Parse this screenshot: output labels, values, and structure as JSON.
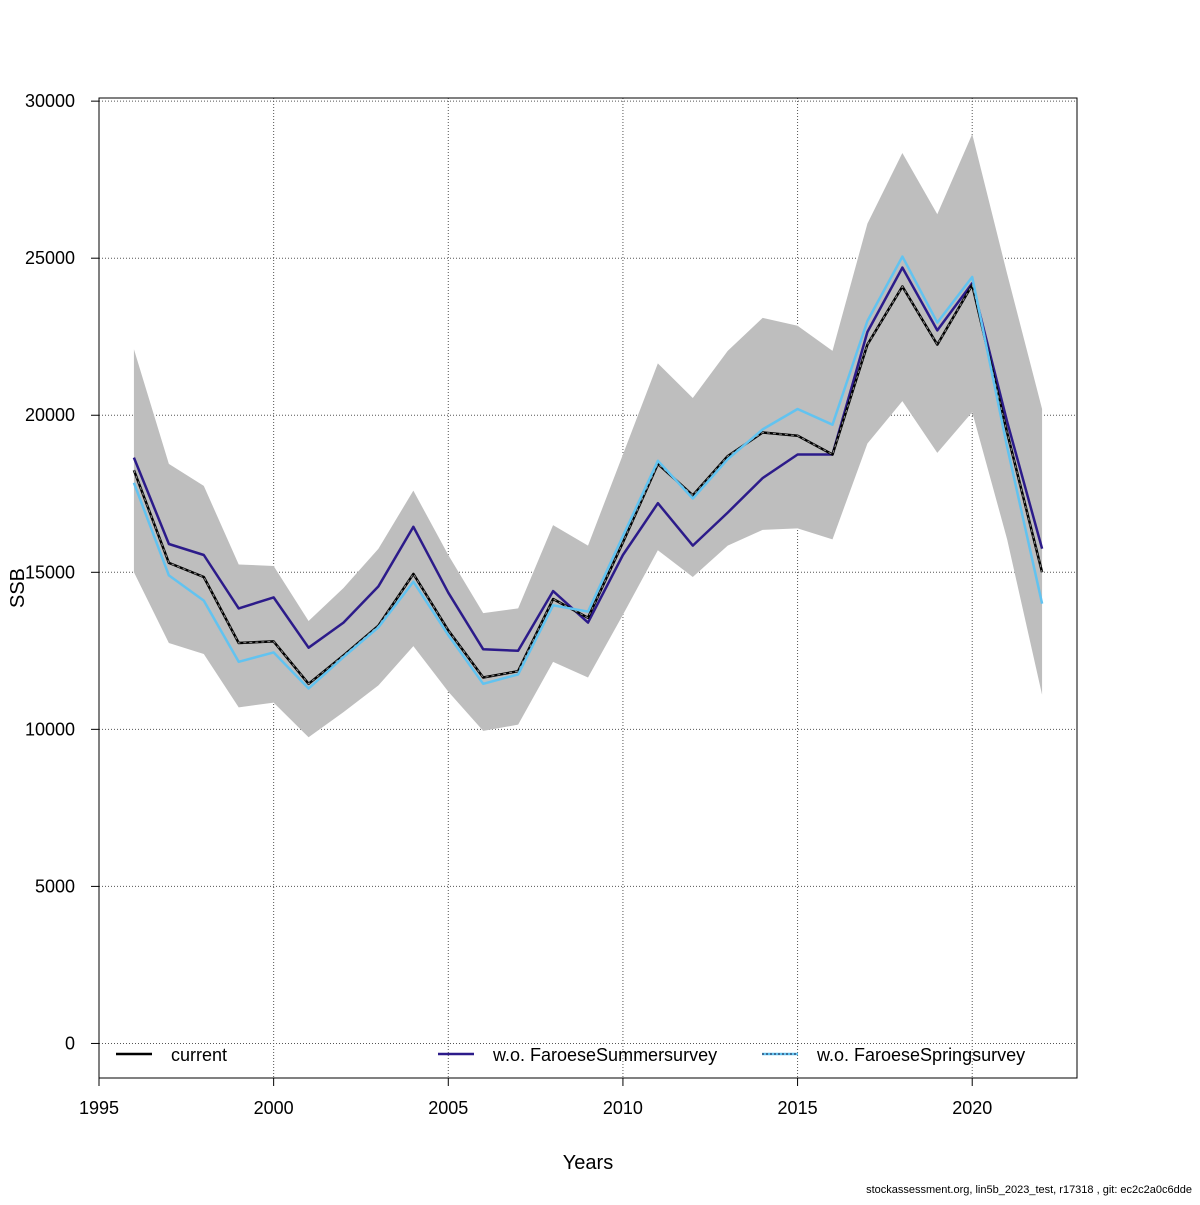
{
  "chart_data": {
    "type": "line",
    "title": "",
    "xlabel": "Years",
    "ylabel": "SSB",
    "xlim": [
      1995,
      2023
    ],
    "ylim": [
      -1100,
      30100
    ],
    "x_ticks": [
      1995,
      2000,
      2005,
      2010,
      2015,
      2020
    ],
    "y_ticks": [
      0,
      5000,
      10000,
      15000,
      20000,
      25000,
      30000
    ],
    "grid": true,
    "legend_position": "bottom",
    "x": [
      1996,
      1997,
      1998,
      1999,
      2000,
      2001,
      2002,
      2003,
      2004,
      2005,
      2006,
      2007,
      2008,
      2009,
      2010,
      2011,
      2012,
      2013,
      2014,
      2015,
      2016,
      2017,
      2018,
      2019,
      2020,
      2021,
      2022
    ],
    "confidence_band": {
      "color": "#bebebe",
      "lower": [
        15000,
        12750,
        12400,
        10700,
        10850,
        9750,
        10550,
        11400,
        12650,
        11200,
        9950,
        10150,
        12150,
        11650,
        13650,
        15700,
        14850,
        15850,
        16350,
        16400,
        16050,
        19100,
        20450,
        18800,
        20100,
        16050,
        11100
      ],
      "upper": [
        22100,
        18450,
        17750,
        15250,
        15200,
        13450,
        14500,
        15750,
        17600,
        15550,
        13700,
        13850,
        16500,
        15850,
        18750,
        21650,
        20550,
        22050,
        23100,
        22850,
        22050,
        26100,
        28350,
        26400,
        28950,
        24500,
        20200
      ]
    },
    "series": [
      {
        "name": "current",
        "color": "#000000",
        "style": "solid",
        "values": [
          18250,
          15300,
          14850,
          12750,
          12800,
          11450,
          12350,
          13300,
          14950,
          13150,
          11650,
          11850,
          14150,
          13550,
          15950,
          18450,
          17450,
          18700,
          19450,
          19350,
          18750,
          22250,
          24100,
          22250,
          24150,
          19450,
          15000
        ]
      },
      {
        "name": "w.o. FaroeseSummersurvey",
        "color": "#2c1b8a",
        "style": "solid",
        "values": [
          18650,
          15900,
          15550,
          13850,
          14200,
          12600,
          13400,
          14550,
          16450,
          14350,
          12550,
          12500,
          14400,
          13400,
          15550,
          17200,
          15850,
          16900,
          18000,
          18750,
          18750,
          22650,
          24700,
          22700,
          24200,
          19800,
          15750
        ]
      },
      {
        "name": "w.o. FaroeseSpringsurvey",
        "color": "#62c3f0",
        "style": "solid",
        "values": [
          17850,
          14900,
          14100,
          12150,
          12450,
          11300,
          12300,
          13250,
          14700,
          13000,
          11450,
          11750,
          13950,
          13750,
          16150,
          18550,
          17350,
          18600,
          19550,
          20200,
          19700,
          23000,
          25050,
          22950,
          24400,
          19000,
          14000
        ]
      }
    ]
  },
  "footer": "stockassessment.org, lin5b_2023_test, r17318 , git: ec2c2a0c6dde"
}
